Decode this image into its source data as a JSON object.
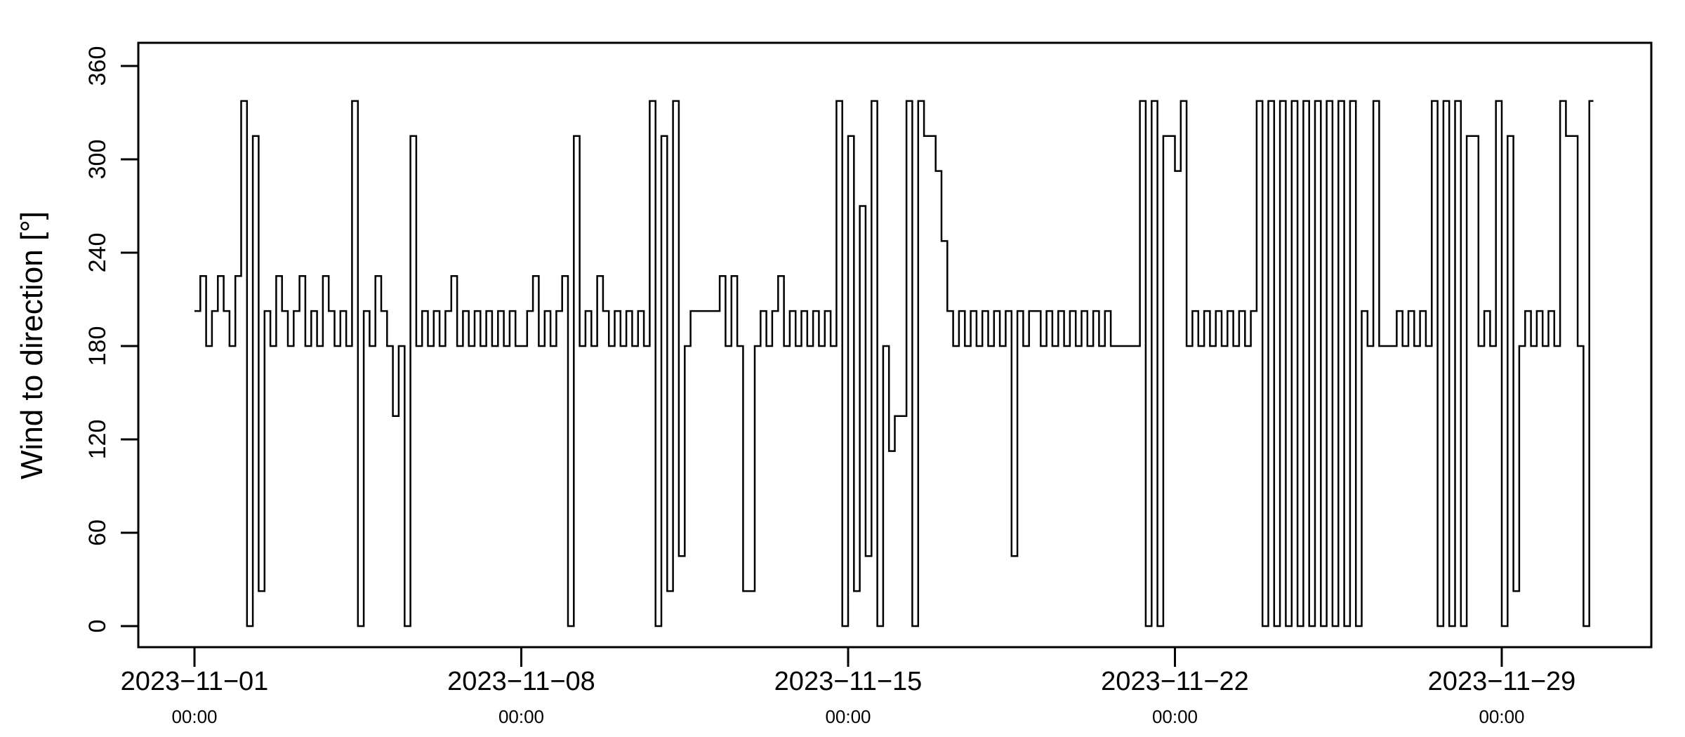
{
  "chart_data": {
    "type": "line",
    "title": "",
    "xlabel": "",
    "ylabel": "Wind to direction [°]",
    "ylim": [
      -22,
      372
    ],
    "yticks": [
      0,
      60,
      120,
      180,
      240,
      300,
      360
    ],
    "xlim": [
      "2023-10-31 05:00",
      "2023-12-01 05:00"
    ],
    "xticks": [
      {
        "date": "2023-11-01",
        "time": "00:00"
      },
      {
        "date": "2023-11-08",
        "time": "00:00"
      },
      {
        "date": "2023-11-15",
        "time": "00:00"
      },
      {
        "date": "2023-11-22",
        "time": "00:00"
      },
      {
        "date": "2023-11-29",
        "time": "00:00"
      }
    ],
    "grid": false,
    "line_color": "#000000",
    "time_start": "2023-11-01 00:00",
    "interval_hours": 3,
    "values": [
      202.5,
      225,
      180,
      202.5,
      225,
      202.5,
      180,
      225,
      337.5,
      0,
      315,
      22.5,
      202.5,
      180,
      225,
      202.5,
      180,
      202.5,
      225,
      180,
      202.5,
      180,
      225,
      202.5,
      180,
      202.5,
      180,
      337.5,
      0,
      202.5,
      180,
      225,
      202.5,
      180,
      135,
      180,
      0,
      315,
      180,
      202.5,
      180,
      202.5,
      180,
      202.5,
      225,
      180,
      202.5,
      180,
      202.5,
      180,
      202.5,
      180,
      202.5,
      180,
      202.5,
      180,
      180,
      202.5,
      225,
      180,
      202.5,
      180,
      202.5,
      225,
      0,
      315,
      180,
      202.5,
      180,
      225,
      202.5,
      180,
      202.5,
      180,
      202.5,
      180,
      202.5,
      180,
      337.5,
      0,
      315,
      22.5,
      337.5,
      45,
      180,
      202.5,
      202.5,
      202.5,
      202.5,
      202.5,
      225,
      180,
      225,
      180,
      22.5,
      22.5,
      180,
      202.5,
      180,
      202.5,
      225,
      180,
      202.5,
      180,
      202.5,
      180,
      202.5,
      180,
      202.5,
      180,
      337.5,
      0,
      315,
      22.5,
      270,
      45,
      337.5,
      0,
      180,
      112.5,
      135,
      135,
      337.5,
      0,
      337.5,
      315,
      315,
      292.5,
      247.5,
      202.5,
      180,
      202.5,
      180,
      202.5,
      180,
      202.5,
      180,
      202.5,
      180,
      202.5,
      45,
      202.5,
      180,
      202.5,
      202.5,
      180,
      202.5,
      180,
      202.5,
      180,
      202.5,
      180,
      202.5,
      180,
      202.5,
      180,
      202.5,
      180,
      180,
      180,
      180,
      180,
      337.5,
      0,
      337.5,
      0,
      315,
      315,
      292.5,
      337.5,
      180,
      202.5,
      180,
      202.5,
      180,
      202.5,
      180,
      202.5,
      180,
      202.5,
      180,
      202.5,
      337.5,
      0,
      337.5,
      0,
      337.5,
      0,
      337.5,
      0,
      337.5,
      0,
      337.5,
      0,
      337.5,
      0,
      337.5,
      0,
      337.5,
      0,
      202.5,
      180,
      337.5,
      180,
      180,
      180,
      202.5,
      180,
      202.5,
      180,
      202.5,
      180,
      337.5,
      0,
      337.5,
      0,
      337.5,
      0,
      315,
      315,
      180,
      202.5,
      180,
      337.5,
      0,
      315,
      22.5,
      180,
      202.5,
      180,
      202.5,
      180,
      202.5,
      180,
      337.5,
      315,
      315,
      180,
      0,
      337.5
    ]
  }
}
